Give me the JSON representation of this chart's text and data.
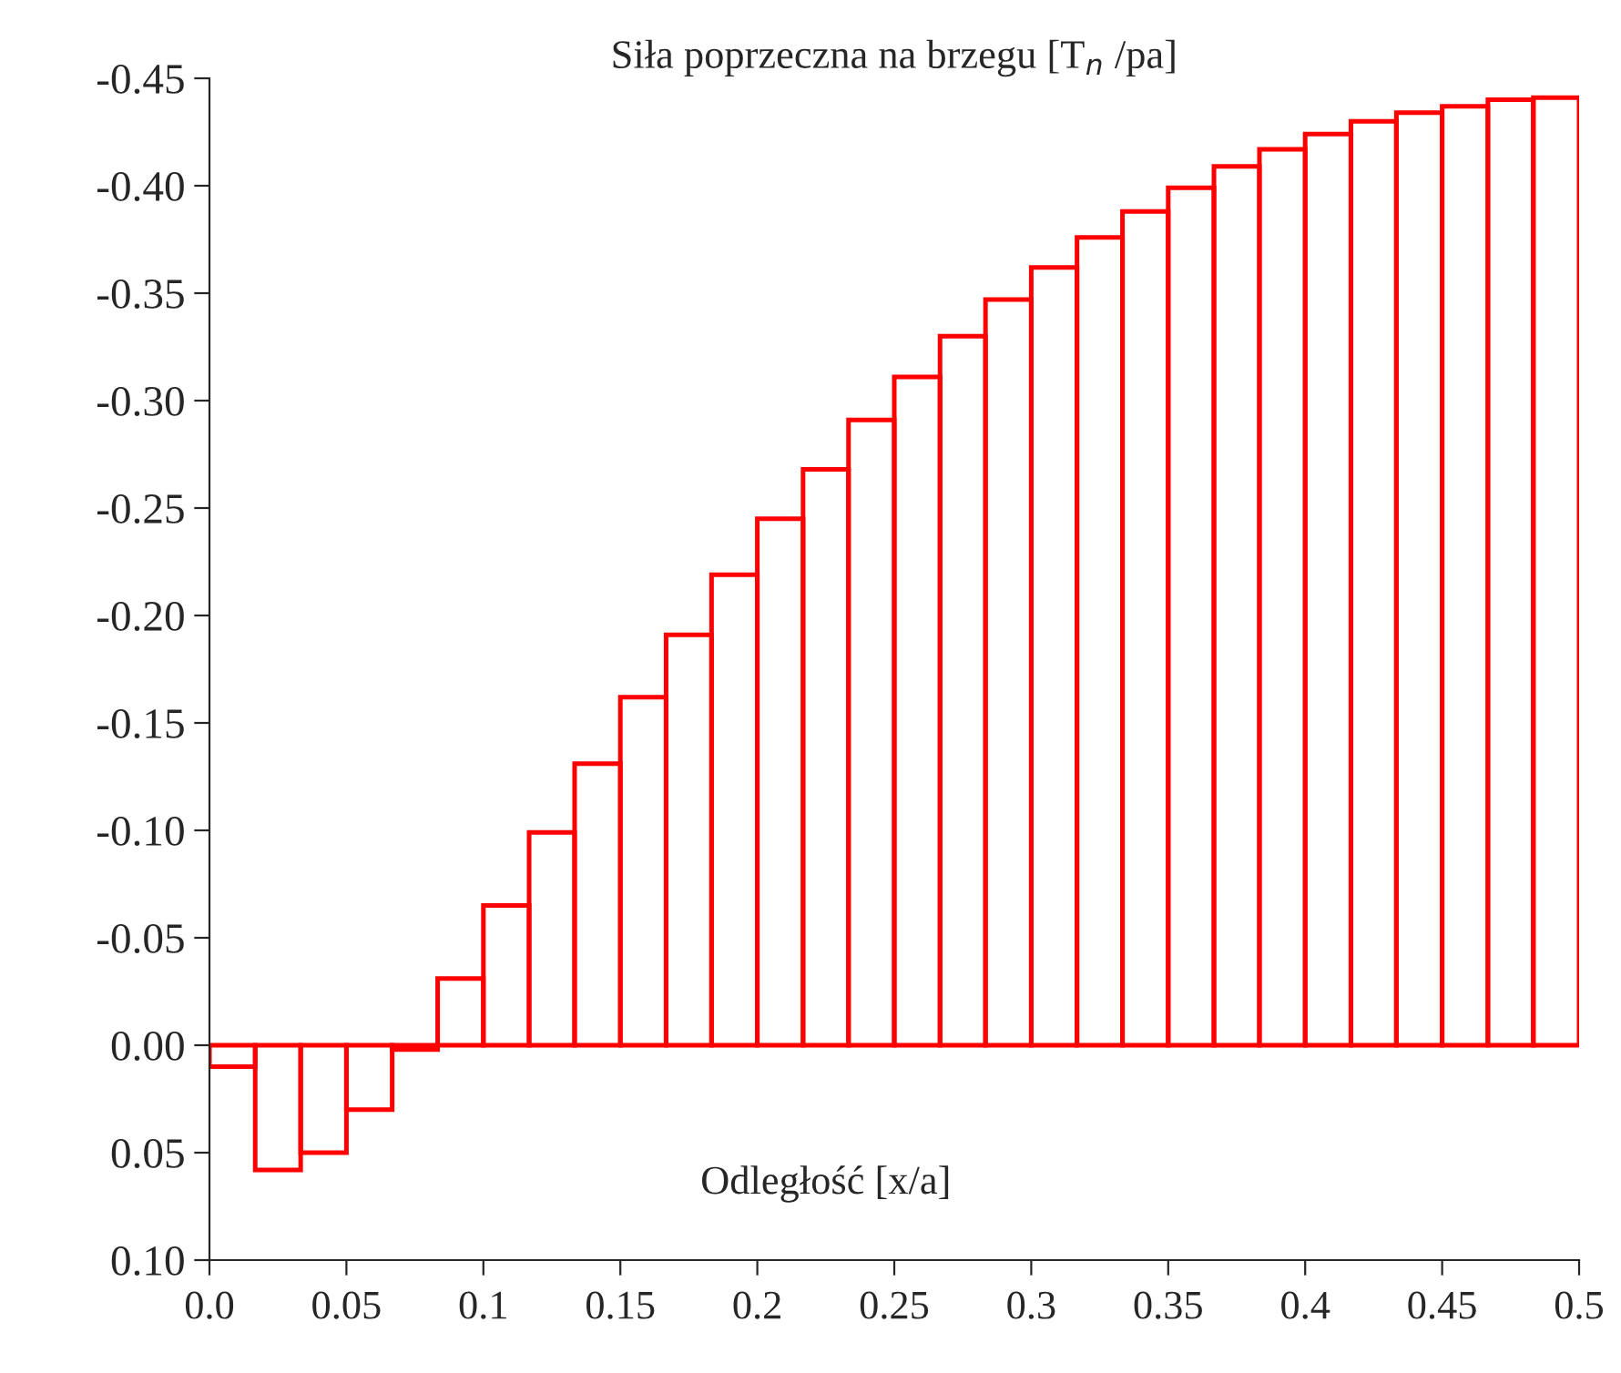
{
  "chart_data": {
    "type": "histogram",
    "title": "Siła poprzeczna na brzegu [T$_{n}$ /pa]",
    "xlabel": "Odległość [x/a]",
    "color": "#ff0000",
    "bins": [
      0,
      0.0167,
      0.0333,
      0.05,
      0.0667,
      0.0833,
      0.1,
      0.1167,
      0.1333,
      0.15,
      0.1667,
      0.1833,
      0.2,
      0.2167,
      0.2333,
      0.25,
      0.2667,
      0.2833,
      0.3,
      0.3167,
      0.3333,
      0.35,
      0.3667,
      0.3833,
      0.4,
      0.4167,
      0.4333,
      0.45,
      0.4667,
      0.4833,
      0.5
    ],
    "values": [
      0.01,
      0.058,
      0.05,
      0.03,
      0.002,
      -0.031,
      -0.065,
      -0.099,
      -0.131,
      -0.162,
      -0.191,
      -0.219,
      -0.245,
      -0.268,
      -0.291,
      -0.311,
      -0.33,
      -0.347,
      -0.362,
      -0.376,
      -0.388,
      -0.399,
      -0.409,
      -0.417,
      -0.424,
      -0.43,
      -0.434,
      -0.437,
      -0.44,
      -0.441
    ],
    "xlim": [
      0,
      0.5
    ],
    "ylim": [
      0.1,
      -0.45
    ],
    "xticks": [
      {
        "value": 0,
        "label": "0.0"
      },
      0.05,
      0.1,
      0.15,
      0.2,
      0.25,
      0.3,
      0.35,
      0.4,
      0.45,
      0.5
    ],
    "yticks": [
      {
        "value": 0.1,
        "label": "0.10"
      },
      {
        "value": 0.05,
        "label": "0.05"
      },
      {
        "value": 0,
        "label": "0.00"
      },
      {
        "value": -0.05,
        "label": "-0.05"
      },
      {
        "value": -0.1,
        "label": "-0.10"
      },
      {
        "value": -0.15,
        "label": "-0.15"
      },
      {
        "value": -0.2,
        "label": "-0.20"
      },
      {
        "value": -0.25,
        "label": "-0.25"
      },
      {
        "value": -0.3,
        "label": "-0.30"
      },
      {
        "value": -0.35,
        "label": "-0.35"
      },
      {
        "value": -0.4,
        "label": "-0.40"
      },
      {
        "value": -0.45,
        "label": "-0.45"
      }
    ],
    "grid": false
  }
}
